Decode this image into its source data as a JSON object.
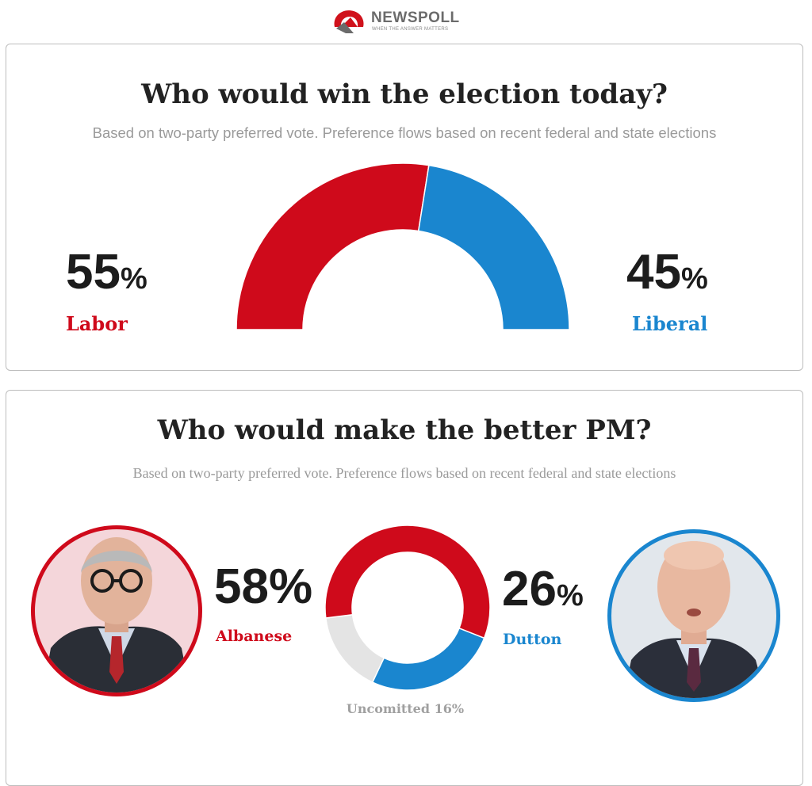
{
  "logo": {
    "brand": "NEWSPOLL",
    "tagline": "WHEN THE ANSWER MATTERS",
    "icon": "newspoll-n-logo",
    "colors": {
      "red": "#d0121c",
      "grey": "#6b6b6b"
    }
  },
  "colors": {
    "labor": "#cf0a1b",
    "liberal": "#1a86cf",
    "uncommitted": "#e4e4e4",
    "albanese_bg": "#f4d6da",
    "dutton_bg": "#e2e7ec"
  },
  "election": {
    "title": "Who would win the election today?",
    "subtitle": "Based on two-party preferred vote. Preference flows based on recent federal and state elections",
    "left": {
      "value": "55",
      "sign": "%",
      "label": "Labor"
    },
    "right": {
      "value": "45",
      "sign": "%",
      "label": "Liberal"
    }
  },
  "pm": {
    "title": "Who would make the better PM?",
    "subtitle": "Based on two-party preferred vote. Preference flows based on recent federal and state elections",
    "left": {
      "value": "58%",
      "label": "Albanese",
      "photo": "albanese-portrait"
    },
    "right": {
      "value": "26",
      "sign": "%",
      "label": "Dutton",
      "photo": "dutton-portrait"
    },
    "uncommitted_label": "Uncomitted 16%"
  },
  "chart_data": [
    {
      "type": "pie",
      "variant": "half-donut",
      "title": "Who would win the election today?",
      "categories": [
        "Labor",
        "Liberal"
      ],
      "values": [
        55,
        45
      ],
      "colors": [
        "#cf0a1b",
        "#1a86cf"
      ]
    },
    {
      "type": "pie",
      "variant": "donut",
      "title": "Who would make the better PM?",
      "categories": [
        "Albanese",
        "Dutton",
        "Uncomitted"
      ],
      "values": [
        58,
        26,
        16
      ],
      "colors": [
        "#cf0a1b",
        "#1a86cf",
        "#e4e4e4"
      ]
    }
  ]
}
